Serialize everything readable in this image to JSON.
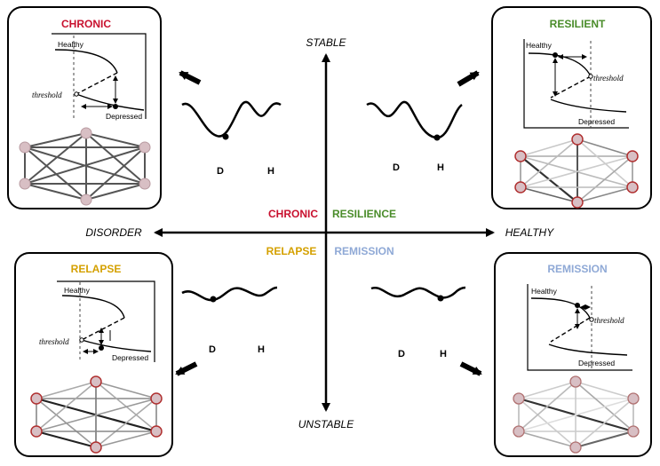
{
  "axes": {
    "top": "STABLE",
    "bottom": "UNSTABLE",
    "left": "DISORDER",
    "right": "HEALTHY"
  },
  "quadrant_labels": {
    "chronic": "CHRONIC",
    "resilience": "RESILIENCE",
    "relapse": "RELAPSE",
    "remission": "REMISSION"
  },
  "panels": {
    "chronic": {
      "title": "CHRONIC",
      "healthy": "Healthy",
      "depressed": "Depressed",
      "threshold": "threshold"
    },
    "resilient": {
      "title": "RESILIENT",
      "healthy": "Healthy",
      "depressed": "Depressed",
      "threshold": "threshold"
    },
    "relapse": {
      "title": "RELAPSE",
      "healthy": "Healthy",
      "depressed": "Depressed",
      "threshold": "threshold"
    },
    "remission": {
      "title": "REMISSION",
      "healthy": "Healthy",
      "depressed": "Depressed",
      "threshold": "threshold"
    }
  },
  "landscape_labels": {
    "d": "D",
    "h": "H"
  },
  "colors": {
    "chronic": "#c8102e",
    "resilience": "#4a8c2a",
    "relapse": "#d4a000",
    "remission": "#8fa9d6",
    "node_fill": "#d8bfc4",
    "node_stroke_red": "#b03030"
  }
}
